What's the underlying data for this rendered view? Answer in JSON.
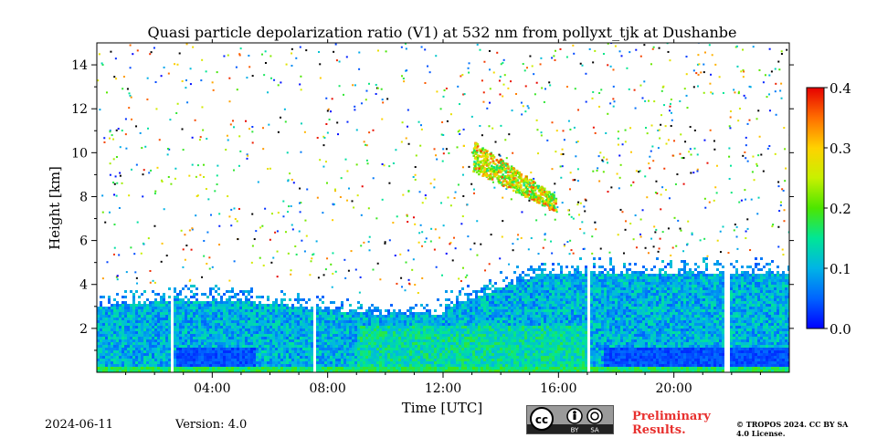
{
  "chart_data": {
    "type": "heatmap",
    "title": "Quasi particle depolarization ratio (V1) at 532 nm from pollyxt_tjk at Dushanbe",
    "xlabel": "Time [UTC]",
    "ylabel": "Height [km]",
    "x_range_hours": [
      0,
      24
    ],
    "ylim": [
      0,
      15
    ],
    "x_ticks": [
      {
        "hour": 4,
        "label": "04:00"
      },
      {
        "hour": 8,
        "label": "08:00"
      },
      {
        "hour": 12,
        "label": "12:00"
      },
      {
        "hour": 16,
        "label": "16:00"
      },
      {
        "hour": 20,
        "label": "20:00"
      }
    ],
    "y_ticks": [
      {
        "value": 2,
        "label": "2"
      },
      {
        "value": 4,
        "label": "4"
      },
      {
        "value": 6,
        "label": "6"
      },
      {
        "value": 8,
        "label": "8"
      },
      {
        "value": 10,
        "label": "10"
      },
      {
        "value": 12,
        "label": "12"
      },
      {
        "value": 14,
        "label": "14"
      }
    ],
    "colorbar": {
      "range": [
        0.0,
        0.4
      ],
      "ticks": [
        {
          "value": 0.0,
          "label": "0.0"
        },
        {
          "value": 0.1,
          "label": "0.1"
        },
        {
          "value": 0.2,
          "label": "0.2"
        },
        {
          "value": 0.3,
          "label": "0.3"
        },
        {
          "value": 0.4,
          "label": "0.4"
        }
      ],
      "colormap": "jet"
    },
    "data_gaps_hours": [
      [
        2.55,
        2.65
      ],
      [
        7.5,
        7.55
      ],
      [
        16.95,
        17.05
      ],
      [
        21.7,
        21.85
      ]
    ],
    "features": [
      {
        "name": "boundary-layer aerosol",
        "time_range_hours": [
          0,
          24
        ],
        "height_top_km": [
          2.5,
          4.5
        ],
        "depol_ratio_approx": [
          0.05,
          0.15
        ]
      },
      {
        "name": "elevated cirrus layer",
        "time_range_hours": [
          13.0,
          15.9
        ],
        "height_range_km": [
          7.3,
          10.3
        ],
        "depol_ratio_approx": [
          0.25,
          0.4
        ]
      }
    ]
  },
  "footer": {
    "date": "2024-06-11",
    "version": "Version: 4.0",
    "license_badge": [
      "BY",
      "SA"
    ],
    "preliminary": "Preliminary Results.",
    "copyright": "© TROPOS 2024. CC BY SA 4.0 License."
  }
}
